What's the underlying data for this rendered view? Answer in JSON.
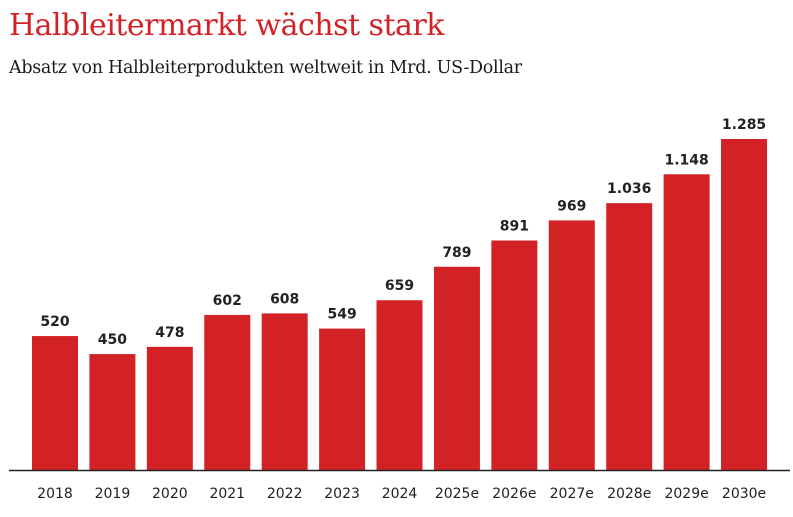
{
  "chart_data": {
    "type": "bar",
    "title": "Halbleitermarkt wächst stark",
    "subtitle": "Absatz von Halbleiterprodukten weltweit in Mrd. US-Dollar",
    "categories": [
      "2018",
      "2019",
      "2020",
      "2021",
      "2022",
      "2023",
      "2024",
      "2025e",
      "2026e",
      "2027e",
      "2028e",
      "2029e",
      "2030e"
    ],
    "values": [
      520,
      450,
      478,
      602,
      608,
      549,
      659,
      789,
      891,
      969,
      1036,
      1148,
      1285
    ],
    "value_labels": [
      "520",
      "450",
      "478",
      "602",
      "608",
      "549",
      "659",
      "789",
      "891",
      "969",
      "1.036",
      "1.148",
      "1.285"
    ],
    "xlabel": "",
    "ylabel": "",
    "ylim": [
      0,
      1285
    ],
    "grid": false,
    "bar_color": "#d32226"
  }
}
